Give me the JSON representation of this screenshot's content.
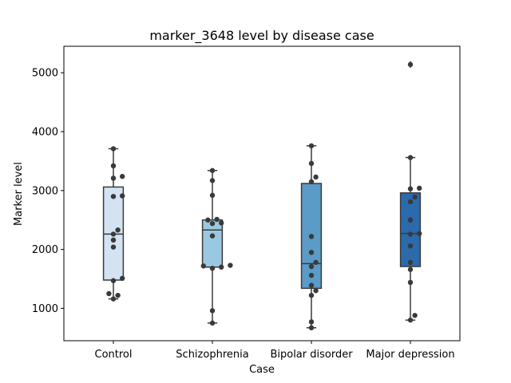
{
  "chart_data": {
    "type": "box",
    "title": "marker_3648 level by disease case",
    "xlabel": "Case",
    "ylabel": "Marker level",
    "ylim": [
      450,
      5450
    ],
    "yticks": [
      1000,
      2000,
      3000,
      4000,
      5000
    ],
    "categories": [
      "Control",
      "Schizophrenia",
      "Bipolar disorder",
      "Major depression"
    ],
    "colors": [
      "#d3e3f2",
      "#9ac8e0",
      "#5b9bc8",
      "#2a6aad"
    ],
    "point_color": "#3a3a3a",
    "boxes": [
      {
        "category": "Control",
        "whisker_low": 1160,
        "q1": 1480,
        "median": 2260,
        "q3": 3060,
        "whisker_high": 3710,
        "outliers": []
      },
      {
        "category": "Schizophrenia",
        "whisker_low": 750,
        "q1": 1700,
        "median": 2330,
        "q3": 2500,
        "whisker_high": 3340,
        "outliers": []
      },
      {
        "category": "Bipolar disorder",
        "whisker_low": 670,
        "q1": 1340,
        "median": 1760,
        "q3": 3120,
        "whisker_high": 3760,
        "outliers": []
      },
      {
        "category": "Major depression",
        "whisker_low": 800,
        "q1": 1710,
        "median": 2270,
        "q3": 2960,
        "whisker_high": 3560,
        "outliers": [
          5140
        ]
      }
    ],
    "points": [
      [
        3710,
        3420,
        3240,
        3210,
        2910,
        2900,
        2330,
        2260,
        2160,
        2040,
        1510,
        1470,
        1250,
        1220,
        1160
      ],
      [
        3340,
        3170,
        2920,
        2510,
        2500,
        2450,
        2440,
        2230,
        1730,
        1720,
        1700,
        1680,
        960,
        750
      ],
      [
        3760,
        3460,
        3230,
        3150,
        2220,
        1950,
        1780,
        1710,
        1560,
        1390,
        1300,
        1220,
        770,
        670
      ],
      [
        5140,
        3560,
        3040,
        3030,
        2890,
        2810,
        2500,
        2270,
        2260,
        2060,
        1780,
        1660,
        1440,
        880,
        800
      ]
    ]
  }
}
